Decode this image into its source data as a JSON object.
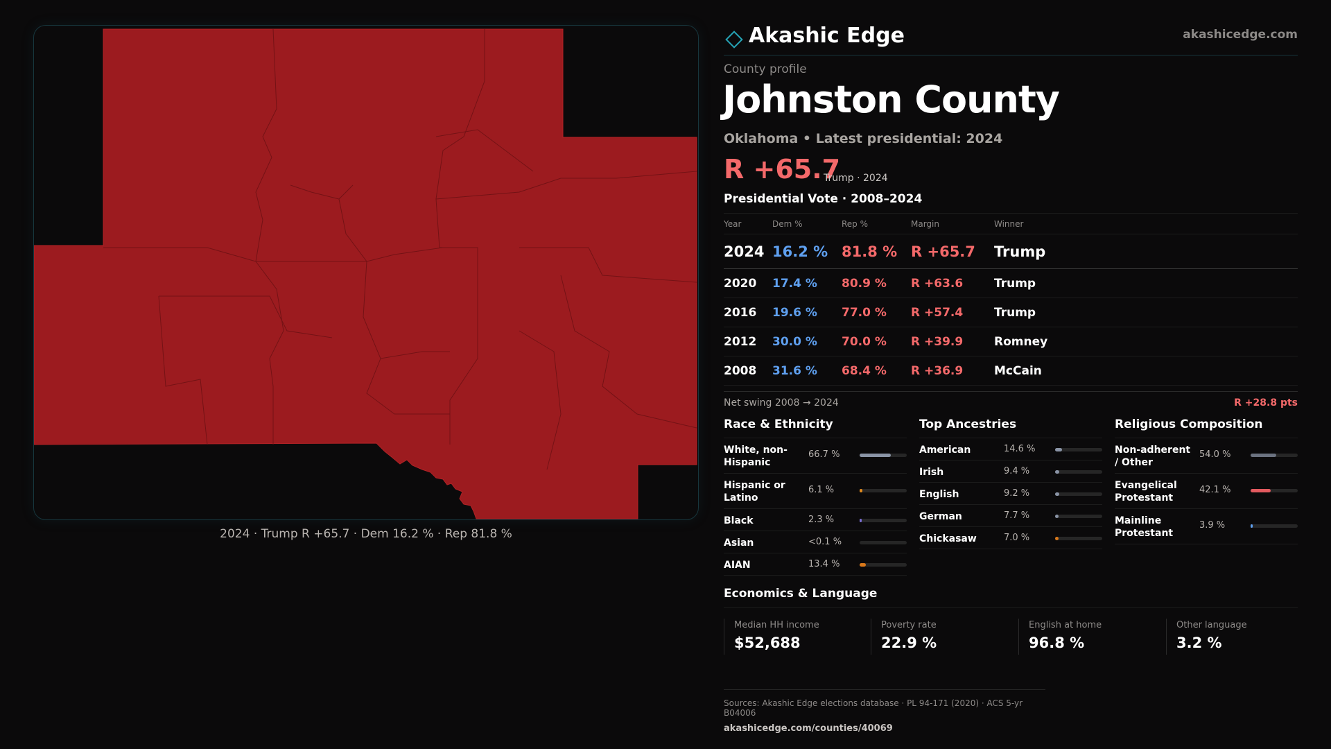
{
  "brand": {
    "name": "Akashic Edge",
    "url": "akashicedge.com"
  },
  "profile": {
    "eyebrow": "County profile",
    "title": "Johnston County",
    "subtitle": "Oklahoma • Latest presidential: 2024",
    "margin": "R +65.7",
    "margin_note": "Trump · 2024"
  },
  "map": {
    "caption": "2024 · Trump R +65.7 · Dem 16.2 % · Rep 81.8 %",
    "fill_color": "#9c1b1f",
    "border_color": "#1d4a52"
  },
  "vote": {
    "heading": "Presidential Vote · 2008–2024",
    "columns": [
      "Year",
      "Dem %",
      "Rep %",
      "Margin",
      "Winner"
    ],
    "rows": [
      {
        "year": "2024",
        "dem": "16.2 %",
        "rep": "81.8 %",
        "margin": "R +65.7",
        "winner": "Trump"
      },
      {
        "year": "2020",
        "dem": "17.4 %",
        "rep": "80.9 %",
        "margin": "R +63.6",
        "winner": "Trump"
      },
      {
        "year": "2016",
        "dem": "19.6 %",
        "rep": "77.0 %",
        "margin": "R +57.4",
        "winner": "Trump"
      },
      {
        "year": "2012",
        "dem": "30.0 %",
        "rep": "70.0 %",
        "margin": "R +39.9",
        "winner": "Romney"
      },
      {
        "year": "2008",
        "dem": "31.6 %",
        "rep": "68.4 %",
        "margin": "R +36.9",
        "winner": "McCain"
      }
    ],
    "swing_label": "Net swing 2008 → 2024",
    "swing_value": "R +28.8 pts"
  },
  "race": {
    "heading": "Race & Ethnicity",
    "items": [
      {
        "label": "White, non-Hispanic",
        "value": "66.7 %",
        "fraction": 0.667,
        "color": "#8a94a6"
      },
      {
        "label": "Hispanic or Latino",
        "value": "6.1 %",
        "fraction": 0.061,
        "color": "#e08a1e"
      },
      {
        "label": "Black",
        "value": "2.3 %",
        "fraction": 0.023,
        "color": "#7b6fd6"
      },
      {
        "label": "Asian",
        "value": "<0.1 %",
        "fraction": 0.0,
        "color": "#3a3a3a"
      },
      {
        "label": "AIAN",
        "value": "13.4 %",
        "fraction": 0.134,
        "color": "#d9781a"
      }
    ]
  },
  "ancestry": {
    "heading": "Top Ancestries",
    "items": [
      {
        "label": "American",
        "value": "14.6 %",
        "fraction": 0.146,
        "color": "#8a94a6"
      },
      {
        "label": "Irish",
        "value": "9.4 %",
        "fraction": 0.094,
        "color": "#8a94a6"
      },
      {
        "label": "English",
        "value": "9.2 %",
        "fraction": 0.092,
        "color": "#8a94a6"
      },
      {
        "label": "German",
        "value": "7.7 %",
        "fraction": 0.077,
        "color": "#8a94a6"
      },
      {
        "label": "Chickasaw",
        "value": "7.0 %",
        "fraction": 0.07,
        "color": "#d9781a"
      }
    ]
  },
  "religion": {
    "heading": "Religious Composition",
    "items": [
      {
        "label": "Non-adherent / Other",
        "value": "54.0 %",
        "fraction": 0.54,
        "color": "#6b7280"
      },
      {
        "label": "Evangelical Protestant",
        "value": "42.1 %",
        "fraction": 0.421,
        "color": "#e25a5f"
      },
      {
        "label": "Mainline Protestant",
        "value": "3.9 %",
        "fraction": 0.039,
        "color": "#5fa0f0"
      }
    ]
  },
  "economics": {
    "heading": "Economics & Language",
    "items": [
      {
        "label": "Median HH income",
        "value": "$52,688"
      },
      {
        "label": "Poverty rate",
        "value": "22.9 %"
      },
      {
        "label": "English at home",
        "value": "96.8 %"
      },
      {
        "label": "Other language",
        "value": "3.2 %"
      }
    ]
  },
  "sources": {
    "text": "Sources: Akashic Edge elections database · PL 94-171 (2020) · ACS 5-yr B04006",
    "url": "akashicedge.com/counties/40069"
  }
}
